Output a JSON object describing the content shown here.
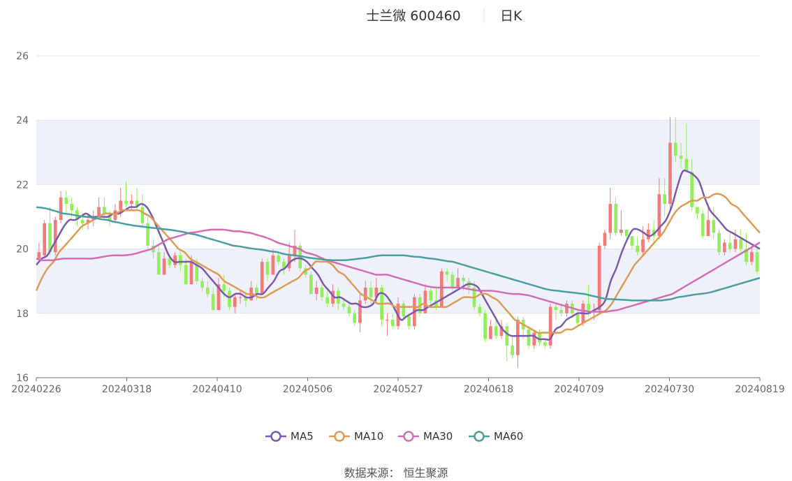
{
  "header": {
    "title": "士兰微 600460",
    "period": "日K"
  },
  "source": "数据来源： 恒生聚源",
  "colors": {
    "up": "#f47a7a",
    "down": "#92ee5a",
    "ma5": "#7a5ab0",
    "ma10": "#e09a52",
    "ma30": "#d46cb4",
    "ma60": "#4a9ea0",
    "band": "#eef1fa",
    "grid": "#e0e6f1"
  },
  "chart_data": {
    "type": "candlestick",
    "title": "士兰微 600460",
    "subtitle": "日K",
    "ylim": [
      16,
      26
    ],
    "yticks": [
      16,
      18,
      20,
      22,
      24,
      26
    ],
    "xticks": [
      "20240226",
      "20240318",
      "20240410",
      "20240506",
      "20240527",
      "20240618",
      "20240709",
      "20240730",
      "20240819"
    ],
    "legend": [
      "MA5",
      "MA10",
      "MA30",
      "MA60"
    ],
    "legend_position": "bottom",
    "candles": [
      [
        19.7,
        19.9,
        19.6,
        20.2
      ],
      [
        19.8,
        20.8,
        19.7,
        20.9
      ],
      [
        20.8,
        19.9,
        19.8,
        21.3
      ],
      [
        19.9,
        20.9,
        19.8,
        21.0
      ],
      [
        20.9,
        21.6,
        20.8,
        21.8
      ],
      [
        21.6,
        21.4,
        21.1,
        21.8
      ],
      [
        21.4,
        21.2,
        21.0,
        21.6
      ],
      [
        21.2,
        20.9,
        20.7,
        21.3
      ],
      [
        20.9,
        20.8,
        20.6,
        21.1
      ],
      [
        20.8,
        20.9,
        20.6,
        21.1
      ],
      [
        20.9,
        21.0,
        20.7,
        21.2
      ],
      [
        21.0,
        21.3,
        20.9,
        21.6
      ],
      [
        21.3,
        21.1,
        20.9,
        21.6
      ],
      [
        21.1,
        20.9,
        20.7,
        21.2
      ],
      [
        20.9,
        21.2,
        20.8,
        21.4
      ],
      [
        21.2,
        21.5,
        21.0,
        21.9
      ],
      [
        21.5,
        21.4,
        21.3,
        22.1
      ],
      [
        21.4,
        21.5,
        21.2,
        21.7
      ],
      [
        21.5,
        21.3,
        21.2,
        21.9
      ],
      [
        21.3,
        20.8,
        20.7,
        21.7
      ],
      [
        20.8,
        20.1,
        20.0,
        21.0
      ],
      [
        20.1,
        19.9,
        19.7,
        20.3
      ],
      [
        19.9,
        19.2,
        19.2,
        20.1
      ],
      [
        19.2,
        19.7,
        19.2,
        19.9
      ],
      [
        19.7,
        19.5,
        19.4,
        19.8
      ],
      [
        19.5,
        19.8,
        19.4,
        19.9
      ],
      [
        19.8,
        19.5,
        19.3,
        19.9
      ],
      [
        19.5,
        18.9,
        18.9,
        19.7
      ],
      [
        18.9,
        19.6,
        18.9,
        19.8
      ],
      [
        19.6,
        19.0,
        18.9,
        19.7
      ],
      [
        19.0,
        18.8,
        18.7,
        19.1
      ],
      [
        18.8,
        18.6,
        18.5,
        19.0
      ],
      [
        18.6,
        18.1,
        18.1,
        18.8
      ],
      [
        18.1,
        18.9,
        18.1,
        19.1
      ],
      [
        18.9,
        18.7,
        18.5,
        19.2
      ],
      [
        18.7,
        18.2,
        18.1,
        18.8
      ],
      [
        18.2,
        18.5,
        18.0,
        18.6
      ],
      [
        18.5,
        18.5,
        18.3,
        18.7
      ],
      [
        18.5,
        18.4,
        18.2,
        18.6
      ],
      [
        18.4,
        18.8,
        18.4,
        19.0
      ],
      [
        18.8,
        18.6,
        18.4,
        18.9
      ],
      [
        18.6,
        19.6,
        18.6,
        19.7
      ],
      [
        19.6,
        19.2,
        19.0,
        19.7
      ],
      [
        19.2,
        19.8,
        19.2,
        20.0
      ],
      [
        19.8,
        19.6,
        19.5,
        19.9
      ],
      [
        19.6,
        19.4,
        19.2,
        19.7
      ],
      [
        19.4,
        19.8,
        19.3,
        20.2
      ],
      [
        19.8,
        20.1,
        19.6,
        20.6
      ],
      [
        20.1,
        19.4,
        19.3,
        20.2
      ],
      [
        19.4,
        19.2,
        19.1,
        19.5
      ],
      [
        19.2,
        18.6,
        18.6,
        19.3
      ],
      [
        18.6,
        18.8,
        18.4,
        19.0
      ],
      [
        18.8,
        18.5,
        18.4,
        18.9
      ],
      [
        18.5,
        18.3,
        18.2,
        18.7
      ],
      [
        18.3,
        18.7,
        18.2,
        18.9
      ],
      [
        18.7,
        18.3,
        18.1,
        18.8
      ],
      [
        18.3,
        18.2,
        18.1,
        18.5
      ],
      [
        18.2,
        18.0,
        17.9,
        18.4
      ],
      [
        18.0,
        17.7,
        17.6,
        18.1
      ],
      [
        17.7,
        18.4,
        17.4,
        18.6
      ],
      [
        18.4,
        18.8,
        18.3,
        19.0
      ],
      [
        18.8,
        18.5,
        18.3,
        19.0
      ],
      [
        18.5,
        18.8,
        18.3,
        19.1
      ],
      [
        18.8,
        17.8,
        17.6,
        18.9
      ],
      [
        17.8,
        17.8,
        17.3,
        18.0
      ],
      [
        17.8,
        17.6,
        17.5,
        18.0
      ],
      [
        17.6,
        18.3,
        17.5,
        18.5
      ],
      [
        18.3,
        17.9,
        17.8,
        18.4
      ],
      [
        17.9,
        17.6,
        17.5,
        18.0
      ],
      [
        17.6,
        18.5,
        17.5,
        18.6
      ],
      [
        18.5,
        18.0,
        17.9,
        18.6
      ],
      [
        18.0,
        18.7,
        18.0,
        18.9
      ],
      [
        18.7,
        18.4,
        18.2,
        18.8
      ],
      [
        18.4,
        18.2,
        18.1,
        18.8
      ],
      [
        18.2,
        19.3,
        18.2,
        19.4
      ],
      [
        19.3,
        19.2,
        19.0,
        19.4
      ],
      [
        19.2,
        18.8,
        18.7,
        19.3
      ],
      [
        18.8,
        19.1,
        18.8,
        19.4
      ],
      [
        19.1,
        19.0,
        18.7,
        19.2
      ],
      [
        19.0,
        18.8,
        18.6,
        19.1
      ],
      [
        18.8,
        18.2,
        18.1,
        19.0
      ],
      [
        18.2,
        18.0,
        17.9,
        18.3
      ],
      [
        18.0,
        17.2,
        17.1,
        18.1
      ],
      [
        17.2,
        17.6,
        17.2,
        17.8
      ],
      [
        17.6,
        17.3,
        17.2,
        17.8
      ],
      [
        17.3,
        17.6,
        17.2,
        17.8
      ],
      [
        17.6,
        17.0,
        16.5,
        17.7
      ],
      [
        17.0,
        16.7,
        16.6,
        17.3
      ],
      [
        16.7,
        17.8,
        16.3,
        17.9
      ],
      [
        17.8,
        17.5,
        17.2,
        17.9
      ],
      [
        17.5,
        17.0,
        16.9,
        17.6
      ],
      [
        17.0,
        17.4,
        16.9,
        17.5
      ],
      [
        17.4,
        17.1,
        17.0,
        17.5
      ],
      [
        17.1,
        17.0,
        16.9,
        17.2
      ],
      [
        17.0,
        18.2,
        16.9,
        18.3
      ],
      [
        18.2,
        18.1,
        17.8,
        18.3
      ],
      [
        18.1,
        18.0,
        17.9,
        18.3
      ],
      [
        18.0,
        18.3,
        17.9,
        18.4
      ],
      [
        18.3,
        18.0,
        17.9,
        18.4
      ],
      [
        18.0,
        17.7,
        17.6,
        18.1
      ],
      [
        17.7,
        18.3,
        17.6,
        18.4
      ],
      [
        18.3,
        18.1,
        17.9,
        18.9
      ],
      [
        18.1,
        18.1,
        17.8,
        18.3
      ],
      [
        18.1,
        20.1,
        18.0,
        20.2
      ],
      [
        20.1,
        20.5,
        20.0,
        20.6
      ],
      [
        20.5,
        21.4,
        20.3,
        21.9
      ],
      [
        21.4,
        20.5,
        20.4,
        21.6
      ],
      [
        20.5,
        20.6,
        20.4,
        21.2
      ],
      [
        20.6,
        20.4,
        20.2,
        20.6
      ],
      [
        20.4,
        20.1,
        20.0,
        20.3
      ],
      [
        20.1,
        19.9,
        19.8,
        20.4
      ],
      [
        19.9,
        20.3,
        19.8,
        20.7
      ],
      [
        20.3,
        20.6,
        20.2,
        20.8
      ],
      [
        20.6,
        20.4,
        20.2,
        20.9
      ],
      [
        20.4,
        21.7,
        20.3,
        22.2
      ],
      [
        21.7,
        21.4,
        21.0,
        22.2
      ],
      [
        21.4,
        23.3,
        21.2,
        24.1
      ],
      [
        23.3,
        22.9,
        22.7,
        24.1
      ],
      [
        22.9,
        22.8,
        22.5,
        23.3
      ],
      [
        22.8,
        22.4,
        22.4,
        23.9
      ],
      [
        22.4,
        21.3,
        21.2,
        22.8
      ],
      [
        21.3,
        21.1,
        20.9,
        21.3
      ],
      [
        21.1,
        20.4,
        20.3,
        21.2
      ],
      [
        20.4,
        20.9,
        20.4,
        21.3
      ],
      [
        20.9,
        20.5,
        20.3,
        21.3
      ],
      [
        20.5,
        19.9,
        19.8,
        20.6
      ],
      [
        19.9,
        20.2,
        19.8,
        20.3
      ],
      [
        20.2,
        20.0,
        19.9,
        20.5
      ],
      [
        20.0,
        20.3,
        19.9,
        20.6
      ],
      [
        20.3,
        20.0,
        19.9,
        20.6
      ],
      [
        20.0,
        19.6,
        19.5,
        20.5
      ],
      [
        19.6,
        19.9,
        19.5,
        20.1
      ],
      [
        19.9,
        19.3,
        19.2,
        20.1
      ]
    ],
    "series": [
      {
        "name": "MA5",
        "values": [
          19.5,
          19.7,
          19.8,
          20.1,
          20.4,
          20.7,
          20.9,
          20.9,
          21.0,
          21.1,
          21.0,
          21.0,
          21.0,
          21.0,
          21.1,
          21.1,
          21.2,
          21.3,
          21.3,
          21.4,
          21.3,
          21.0,
          20.6,
          20.2,
          19.8,
          19.6,
          19.6,
          19.6,
          19.6,
          19.5,
          19.4,
          19.2,
          19.0,
          18.8,
          18.6,
          18.5,
          18.6,
          18.6,
          18.5,
          18.5,
          18.6,
          18.6,
          18.8,
          19.0,
          19.3,
          19.4,
          19.6,
          19.7,
          19.7,
          19.6,
          19.4,
          19.2,
          18.9,
          18.7,
          18.5,
          18.5,
          18.4,
          18.3,
          18.3,
          18.2,
          18.2,
          18.3,
          18.6,
          18.6,
          18.4,
          18.1,
          17.8,
          17.9,
          18.0,
          18.1,
          18.1,
          18.2,
          18.3,
          18.4,
          18.5,
          18.6,
          18.7,
          18.8,
          18.9,
          18.9,
          18.8,
          18.5,
          18.2,
          17.9,
          17.6,
          17.4,
          17.3,
          17.3,
          17.3,
          17.3,
          17.3,
          17.2,
          17.2,
          17.2,
          17.5,
          17.6,
          17.8,
          17.9,
          18.0,
          18.0,
          18.0,
          18.1,
          18.2,
          18.4,
          19.0,
          19.4,
          19.9,
          20.3,
          20.6,
          20.6,
          20.5,
          20.4,
          20.5,
          20.7,
          20.9,
          21.3,
          21.9,
          22.4,
          22.4,
          22.3,
          22.1,
          21.6,
          21.2,
          21.0,
          20.8,
          20.6,
          20.5,
          20.4,
          20.3,
          20.2,
          20.1,
          20.0
        ]
      },
      {
        "name": "MA10",
        "values": [
          18.7,
          19.1,
          19.4,
          19.6,
          19.9,
          20.1,
          20.3,
          20.5,
          20.7,
          20.8,
          20.9,
          21.0,
          21.1,
          21.1,
          21.1,
          21.2,
          21.2,
          21.2,
          21.2,
          21.1,
          21.0,
          20.8,
          20.6,
          20.4,
          20.2,
          20.0,
          19.9,
          19.7,
          19.6,
          19.5,
          19.4,
          19.3,
          19.2,
          19.0,
          18.9,
          18.8,
          18.7,
          18.6,
          18.6,
          18.5,
          18.5,
          18.6,
          18.7,
          18.8,
          18.9,
          19.0,
          19.1,
          19.3,
          19.4,
          19.6,
          19.6,
          19.6,
          19.5,
          19.3,
          19.2,
          19.0,
          18.8,
          18.6,
          18.5,
          18.4,
          18.3,
          18.3,
          18.3,
          18.2,
          18.2,
          18.2,
          18.2,
          18.2,
          18.3,
          18.2,
          18.2,
          18.2,
          18.2,
          18.3,
          18.4,
          18.5,
          18.5,
          18.5,
          18.6,
          18.6,
          18.5,
          18.4,
          18.2,
          18.0,
          17.8,
          17.7,
          17.6,
          17.5,
          17.4,
          17.4,
          17.4,
          17.4,
          17.4,
          17.5,
          17.5,
          17.6,
          17.7,
          17.8,
          17.9,
          18.0,
          18.1,
          18.3,
          18.6,
          18.9,
          19.2,
          19.5,
          19.7,
          19.9,
          20.1,
          20.3,
          20.5,
          20.8,
          21.1,
          21.3,
          21.4,
          21.5,
          21.5,
          21.6,
          21.6,
          21.7,
          21.7,
          21.6,
          21.4,
          21.3,
          21.1,
          20.9,
          20.7,
          20.5
        ]
      },
      {
        "name": "MA30",
        "values": [
          19.7,
          19.65,
          19.65,
          19.65,
          19.68,
          19.7,
          19.7,
          19.7,
          19.7,
          19.7,
          19.7,
          19.72,
          19.75,
          19.78,
          19.8,
          19.8,
          19.8,
          19.82,
          19.85,
          19.9,
          19.95,
          20.0,
          20.1,
          20.2,
          20.3,
          20.35,
          20.4,
          20.45,
          20.5,
          20.52,
          20.55,
          20.58,
          20.6,
          20.6,
          20.6,
          20.58,
          20.55,
          20.55,
          20.52,
          20.5,
          20.45,
          20.4,
          20.35,
          20.28,
          20.2,
          20.15,
          20.1,
          20.05,
          20.0,
          19.9,
          19.85,
          19.8,
          19.72,
          19.65,
          19.6,
          19.55,
          19.5,
          19.45,
          19.4,
          19.35,
          19.3,
          19.25,
          19.2,
          19.2,
          19.2,
          19.15,
          19.1,
          19.05,
          19.0,
          18.95,
          18.9,
          18.85,
          18.82,
          18.8,
          18.8,
          18.8,
          18.8,
          18.8,
          18.78,
          18.75,
          18.72,
          18.7,
          18.7,
          18.7,
          18.68,
          18.65,
          18.62,
          18.6,
          18.6,
          18.58,
          18.55,
          18.5,
          18.45,
          18.4,
          18.35,
          18.3,
          18.25,
          18.2,
          18.15,
          18.1,
          18.08,
          18.05,
          18.05,
          18.05,
          18.05,
          18.08,
          18.1,
          18.15,
          18.2,
          18.25,
          18.3,
          18.35,
          18.4,
          18.45,
          18.5,
          18.55,
          18.6,
          18.7,
          18.8,
          18.9,
          19.0,
          19.1,
          19.2,
          19.3,
          19.4,
          19.5,
          19.6,
          19.7,
          19.8,
          19.9,
          20.0,
          20.1,
          20.2
        ]
      },
      {
        "name": "MA60",
        "values": [
          21.3,
          21.28,
          21.25,
          21.2,
          21.15,
          21.1,
          21.08,
          21.05,
          21.02,
          21.0,
          20.98,
          20.95,
          20.92,
          20.9,
          20.85,
          20.82,
          20.78,
          20.75,
          20.72,
          20.7,
          20.68,
          20.66,
          20.64,
          20.62,
          20.6,
          20.58,
          20.55,
          20.52,
          20.48,
          20.45,
          20.4,
          20.35,
          20.3,
          20.25,
          20.2,
          20.15,
          20.1,
          20.08,
          20.05,
          20.02,
          20.0,
          19.98,
          19.95,
          19.92,
          19.9,
          19.85,
          19.82,
          19.8,
          19.78,
          19.75,
          19.72,
          19.7,
          19.68,
          19.66,
          19.65,
          19.65,
          19.65,
          19.66,
          19.68,
          19.7,
          19.72,
          19.75,
          19.78,
          19.8,
          19.8,
          19.8,
          19.8,
          19.8,
          19.78,
          19.76,
          19.75,
          19.72,
          19.7,
          19.68,
          19.65,
          19.62,
          19.6,
          19.55,
          19.5,
          19.45,
          19.4,
          19.35,
          19.3,
          19.25,
          19.2,
          19.15,
          19.1,
          19.05,
          19.0,
          18.95,
          18.9,
          18.85,
          18.8,
          18.75,
          18.72,
          18.7,
          18.68,
          18.66,
          18.64,
          18.62,
          18.6,
          18.56,
          18.52,
          18.48,
          18.45,
          18.44,
          18.43,
          18.42,
          18.41,
          18.4,
          18.4,
          18.4,
          18.4,
          18.4,
          18.4,
          18.42,
          18.45,
          18.5,
          18.52,
          18.55,
          18.58,
          18.6,
          18.62,
          18.65,
          18.7,
          18.75,
          18.8,
          18.85,
          18.9,
          18.95,
          19.0,
          19.05,
          19.1
        ]
      }
    ]
  }
}
